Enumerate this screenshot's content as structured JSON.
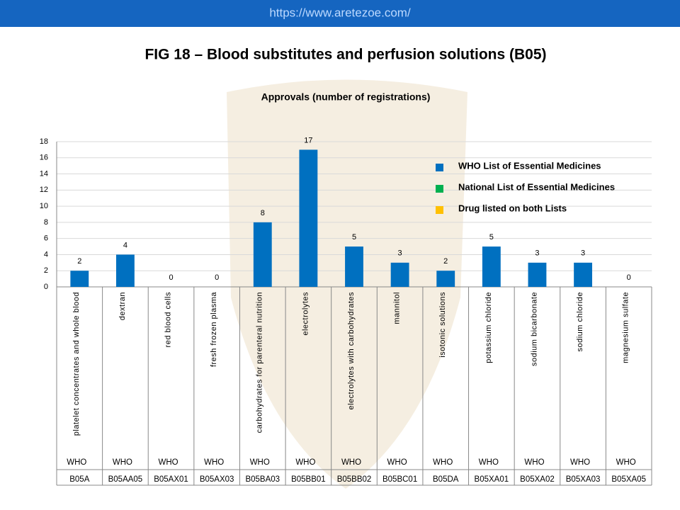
{
  "header": {
    "url": "https://www.aretezoe.com/"
  },
  "title": "FIG 18 – Blood substitutes and perfusion solutions (B05)",
  "chart_data": {
    "type": "bar",
    "title": "Approvals (number of registrations)",
    "categories": [
      "platelet concentrates and whole blood",
      "dextran",
      "red blood cells",
      "fresh frozen plasma",
      "carbohydrates for parenteral nutrition",
      "electrolytes",
      "electrolytes with carbohydrates",
      "mannitol",
      "isotonic solutions",
      "potassium chloride",
      "sodium bicarbonate",
      "sodium chloride",
      "magnesium sulfate"
    ],
    "lists": [
      "WHO",
      "WHO",
      "WHO",
      "WHO",
      "WHO",
      "WHO",
      "WHO",
      "WHO",
      "WHO",
      "WHO",
      "WHO",
      "WHO",
      "WHO"
    ],
    "codes": [
      "B05A",
      "B05AA05",
      "B05AX01",
      "B05AX03",
      "B05BA03",
      "B05BB01",
      "B05BB02",
      "B05BC01",
      "B05DA",
      "B05XA01",
      "B05XA02",
      "B05XA03",
      "B05XA05"
    ],
    "values": [
      2,
      4,
      0,
      0,
      8,
      17,
      5,
      3,
      2,
      5,
      3,
      3,
      0
    ],
    "color": "#0070c0",
    "legend": [
      {
        "name": "WHO List of Essential Medicines",
        "color": "#0070c0"
      },
      {
        "name": "National List of Essential Medicines",
        "color": "#00b050"
      },
      {
        "name": "Drug listed on both Lists",
        "color": "#ffc000"
      }
    ],
    "ylim": [
      0,
      18
    ],
    "yticks": [
      0,
      2,
      4,
      6,
      8,
      10,
      12,
      14,
      16,
      18
    ],
    "grid": true
  }
}
